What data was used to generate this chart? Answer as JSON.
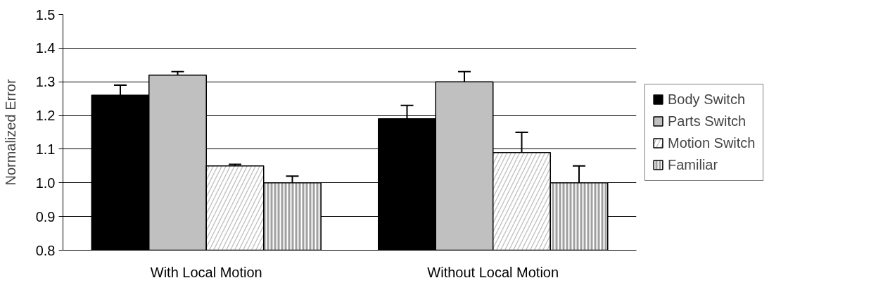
{
  "chart_data": {
    "type": "bar",
    "ylabel": "Normalized Error",
    "categories": [
      "With Local Motion",
      "Without Local Motion"
    ],
    "series": [
      {
        "name": "Body Switch",
        "color": "#000000",
        "values": [
          1.26,
          1.19
        ],
        "errors": [
          0.03,
          0.04
        ]
      },
      {
        "name": "Parts Switch",
        "color": "#c0c0c0",
        "values": [
          1.32,
          1.3
        ],
        "errors": [
          0.01,
          0.03
        ]
      },
      {
        "name": "Motion Switch",
        "color": "#c0c0c0",
        "values": [
          1.05,
          1.09
        ],
        "errors": [
          0.005,
          0.06
        ]
      },
      {
        "name": "Familiar",
        "color": "#a0a0a0",
        "values": [
          1.0,
          1.0
        ],
        "errors": [
          0.02,
          0.05
        ]
      }
    ],
    "ylim": [
      0.8,
      1.5
    ],
    "yticks": [
      {
        "value": 0.8,
        "label": "0.8"
      },
      {
        "value": 0.9,
        "label": "0.9"
      },
      {
        "value": 1.0,
        "label": "1.0"
      },
      {
        "value": 1.1,
        "label": "1.1"
      },
      {
        "value": 1.2,
        "label": "1.2"
      },
      {
        "value": 1.3,
        "label": "1.3"
      },
      {
        "value": 1.4,
        "label": "1.4"
      },
      {
        "value": 1.5,
        "label": "1.5"
      }
    ],
    "grid": "y",
    "legend": "right"
  }
}
